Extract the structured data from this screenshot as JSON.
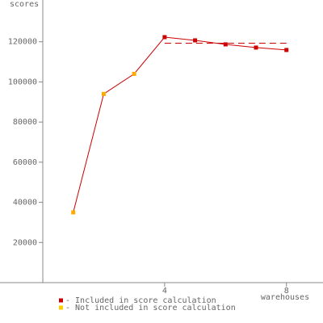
{
  "chart_data": {
    "type": "line",
    "ylabel": "scores",
    "xlabel": "warehouses",
    "x": [
      1,
      2,
      3,
      4,
      5,
      6,
      7,
      8
    ],
    "series": [
      {
        "color": "#cc0000",
        "values": [
          35000,
          94000,
          104000,
          122300,
          120700,
          118700,
          117100,
          115900
        ],
        "point_colors": [
          "#ffaa00",
          "#ffaa00",
          "#ffaa00",
          "#cc0000",
          "#cc0000",
          "#cc0000",
          "#cc0000",
          "#cc0000"
        ]
      }
    ],
    "reference": {
      "value": 119300,
      "from": 4,
      "to": 8,
      "color": "#cc0000"
    },
    "xlim": [
      0,
      9.2
    ],
    "ylim": [
      0,
      140000
    ],
    "xticks": [
      4,
      8
    ],
    "yticks": [
      20000,
      40000,
      60000,
      80000,
      100000,
      120000
    ],
    "legend": [
      {
        "label": "- Included in score calculation",
        "color": "#cc0000"
      },
      {
        "label": "- Not included in score calculation",
        "color": "#ffcc00"
      }
    ]
  }
}
